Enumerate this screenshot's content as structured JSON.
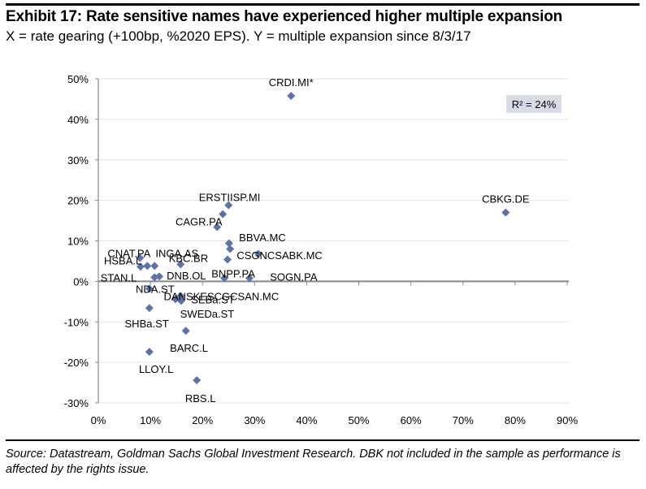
{
  "header": {
    "title": "Exhibit 17: Rate sensitive names have experienced higher multiple expansion",
    "subtitle": "X = rate gearing (+100bp, %2020 EPS). Y = multiple expansion since 8/3/17"
  },
  "footer": {
    "source": "Source: Datastream, Goldman Sachs Global Investment Research. DBK not included in the sample as performance is affected by the rights issue."
  },
  "chart_data": {
    "type": "scatter",
    "title": "Exhibit 17: Rate sensitive names have experienced higher multiple expansion",
    "xlabel": "rate gearing (+100bp, %2020 EPS)",
    "ylabel": "multiple expansion since 8/3/17",
    "xlim": [
      0,
      90
    ],
    "ylim": [
      -30,
      50
    ],
    "x_ticks": [
      "0%",
      "10%",
      "20%",
      "30%",
      "40%",
      "50%",
      "60%",
      "70%",
      "80%",
      "90%"
    ],
    "y_ticks": [
      "50%",
      "40%",
      "30%",
      "20%",
      "10%",
      "0%",
      "-10%",
      "-20%",
      "-30%"
    ],
    "grid": "horizontal",
    "annotation": "R² = 24%",
    "marker_color": "#5b73a8",
    "points": [
      {
        "label": "CRDI.MI*",
        "x": 37.0,
        "y": 45.8
      },
      {
        "label": "CBKG.DE",
        "x": 78.2,
        "y": 17.0
      },
      {
        "label": "ISP.MI",
        "x": 25.0,
        "y": 18.8
      },
      {
        "label": "ERSTE",
        "x": 23.9,
        "y": 16.6
      },
      {
        "label": "CAGR.PA",
        "x": 22.8,
        "y": 13.4
      },
      {
        "label": "BBVA.MC",
        "x": 25.1,
        "y": 9.4
      },
      {
        "label": "CABK.MC",
        "x": 25.3,
        "y": 8.0
      },
      {
        "label": "",
        "x": 24.8,
        "y": 5.4
      },
      {
        "label": "CSGN.S*",
        "x": 30.7,
        "y": 6.8
      },
      {
        "label": "BNPP.PA",
        "x": 24.2,
        "y": 0.8
      },
      {
        "label": "SOGN.PA",
        "x": 29.0,
        "y": 0.8
      },
      {
        "label": "HSBA.L",
        "x": 8.0,
        "y": 5.8
      },
      {
        "label": "STAN.L",
        "x": 8.1,
        "y": 3.6
      },
      {
        "label": "CNAT.PA",
        "x": 9.4,
        "y": 3.8
      },
      {
        "label": "INGA.AS",
        "x": 10.8,
        "y": 3.8
      },
      {
        "label": "KBC.BR",
        "x": 15.8,
        "y": 4.2
      },
      {
        "label": "DNB.OL",
        "x": 11.7,
        "y": 1.2
      },
      {
        "label": "NDA.ST",
        "x": 10.8,
        "y": 1.0
      },
      {
        "label": "DANSKE",
        "x": 9.8,
        "y": -1.8
      },
      {
        "label": "KBC",
        "x": 15.8,
        "y": -3.6
      },
      {
        "label": "SEBa.ST",
        "x": 14.8,
        "y": -4.4
      },
      {
        "label": "SWEDa.ST",
        "x": 15.9,
        "y": -4.8
      },
      {
        "label": "SAN.MC",
        "x": 15.8,
        "y": -3.6
      },
      {
        "label": "SHBa.ST",
        "x": 9.8,
        "y": -6.6
      },
      {
        "label": "BARC.L",
        "x": 16.8,
        "y": -12.2
      },
      {
        "label": "LLOY.L",
        "x": 9.8,
        "y": -17.4
      },
      {
        "label": "RBS.L",
        "x": 18.9,
        "y": -24.4
      }
    ],
    "text_labels": [
      {
        "text": "CRDI.MI*",
        "x": 37.0,
        "y": 49.2,
        "anchor": "middle"
      },
      {
        "text": "CBKG.DE",
        "x": 78.2,
        "y": 20.4,
        "anchor": "middle"
      },
      {
        "text": "ERSTIISP.MI",
        "x": 25.2,
        "y": 20.8,
        "anchor": "middle"
      },
      {
        "text": "CAGR.PA",
        "x": 19.3,
        "y": 14.8,
        "anchor": "middle"
      },
      {
        "text": "BBVA.MC",
        "x": 31.5,
        "y": 10.9,
        "anchor": "middle"
      },
      {
        "text": "CSGNCSABK.MC",
        "x": 34.8,
        "y": 6.5,
        "anchor": "middle"
      },
      {
        "text": "BNPP.PA",
        "x": 25.9,
        "y": 2.0,
        "anchor": "middle"
      },
      {
        "text": "SOGN.PA",
        "x": 37.5,
        "y": 1.2,
        "anchor": "middle"
      },
      {
        "text": "CNAT.PA",
        "x": 5.9,
        "y": 7.0,
        "anchor": "middle"
      },
      {
        "text": "INGA.AS",
        "x": 15.1,
        "y": 7.0,
        "anchor": "middle"
      },
      {
        "text": "HSBA.L",
        "x": 4.7,
        "y": 5.2,
        "anchor": "middle"
      },
      {
        "text": "KBC.BR",
        "x": 17.3,
        "y": 5.8,
        "anchor": "middle"
      },
      {
        "text": "STAN.L",
        "x": 3.9,
        "y": 1.0,
        "anchor": "middle"
      },
      {
        "text": "DNB.OL",
        "x": 16.9,
        "y": 1.5,
        "anchor": "middle"
      },
      {
        "text": "NDA.ST",
        "x": 10.9,
        "y": -1.8,
        "anchor": "middle"
      },
      {
        "text": "DANSKESCGCSAN.MC",
        "x": 23.6,
        "y": -3.6,
        "anchor": "middle"
      },
      {
        "text": "SEBa.ST",
        "x": 22.0,
        "y": -4.4,
        "anchor": "middle"
      },
      {
        "text": "SWEDa.ST",
        "x": 20.9,
        "y": -7.9,
        "anchor": "middle"
      },
      {
        "text": "SHBa.ST",
        "x": 9.3,
        "y": -10.4,
        "anchor": "middle"
      },
      {
        "text": "BARC.L",
        "x": 17.4,
        "y": -16.4,
        "anchor": "middle"
      },
      {
        "text": "LLOY.L",
        "x": 11.1,
        "y": -21.6,
        "anchor": "middle"
      },
      {
        "text": "RBS.L",
        "x": 19.6,
        "y": -28.8,
        "anchor": "middle"
      }
    ]
  }
}
